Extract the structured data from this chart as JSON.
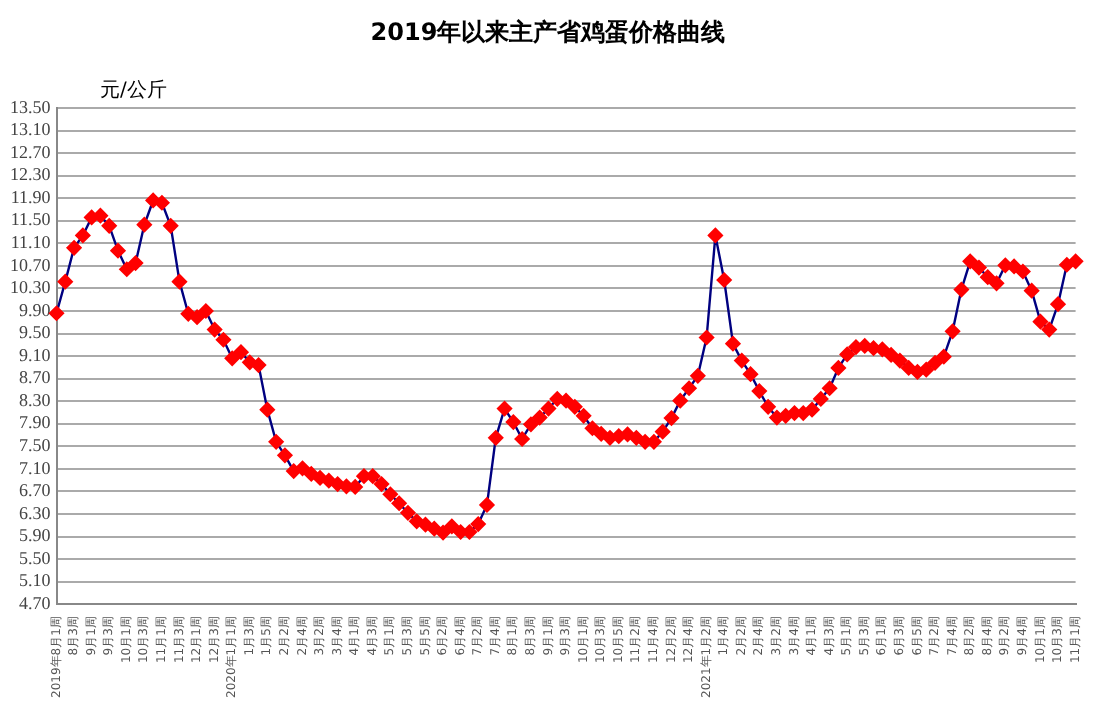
{
  "chart_data": {
    "type": "line",
    "title": "2019年以来主产省鸡蛋价格曲线",
    "ylabel": "元/公斤",
    "categories": [
      "2019年8月1周",
      null,
      "8月3周",
      null,
      "9月1周",
      null,
      "9月3周",
      null,
      "10月1周",
      null,
      "10月3周",
      null,
      "11月1周",
      null,
      "11月3周",
      null,
      "12月1周",
      null,
      "12月3周",
      null,
      "2020年1月1周",
      null,
      "1月3周",
      null,
      "1月5周",
      null,
      "2月2周",
      null,
      "2月4周",
      null,
      "3月2周",
      null,
      "3月4周",
      null,
      "4月1周",
      null,
      "4月3周",
      null,
      "5月1周",
      null,
      "5月3周",
      null,
      "5月5周",
      null,
      "6月2周",
      null,
      "6月4周",
      null,
      "7月2周",
      null,
      "7月4周",
      null,
      "8月1周",
      null,
      "8月3周",
      null,
      "9月1周",
      null,
      "9月3周",
      null,
      "10月1周",
      null,
      "10月3周",
      null,
      "10月5周",
      null,
      "11月2周",
      null,
      "11月4周",
      null,
      "12月2周",
      null,
      "12月4周",
      null,
      "2021年1月2周",
      null,
      "1月4周",
      null,
      "2月2周",
      null,
      "2月4周",
      null,
      "3月2周",
      null,
      "3月4周",
      null,
      "4月1周",
      null,
      "4月3周",
      null,
      "5月1周",
      null,
      "5月3周",
      null,
      "6月1周",
      null,
      "6月3周",
      null,
      "6月5周",
      null,
      "7月2周",
      null,
      "7月4周",
      null,
      "8月2周",
      null,
      "8月4周",
      null,
      "9月2周",
      null,
      "9月4周",
      null,
      "10月1周",
      null,
      "10月3周",
      null,
      "11月1周"
    ],
    "series": [
      {
        "color": "#ff0000",
        "values": [
          9.86,
          10.42,
          11.02,
          11.24,
          11.56,
          11.59,
          11.41,
          10.97,
          10.64,
          10.75,
          11.43,
          11.86,
          11.82,
          11.41,
          10.42,
          9.85,
          9.79,
          9.9,
          9.57,
          9.39,
          9.06,
          9.17,
          8.99,
          8.94,
          8.15,
          7.58,
          7.34,
          7.06,
          7.11,
          7.01,
          6.94,
          6.89,
          6.83,
          6.79,
          6.78,
          6.97,
          6.97,
          6.83,
          6.65,
          6.49,
          6.32,
          6.17,
          6.11,
          6.04,
          5.97,
          6.08,
          5.98,
          5.98,
          6.12,
          6.46,
          7.65,
          8.17,
          7.93,
          7.63,
          7.89,
          8.01,
          8.17,
          8.34,
          8.31,
          8.2,
          8.04,
          7.82,
          7.72,
          7.65,
          7.68,
          7.71,
          7.65,
          7.58,
          7.58,
          7.76,
          8.0,
          8.31,
          8.53,
          8.75,
          9.43,
          11.24,
          10.45,
          9.32,
          9.02,
          8.78,
          8.48,
          8.2,
          8.01,
          8.04,
          8.09,
          8.09,
          8.15,
          8.34,
          8.53,
          8.89,
          9.13,
          9.26,
          9.28,
          9.24,
          9.22,
          9.12,
          9.02,
          8.89,
          8.82,
          8.86,
          8.98,
          9.09,
          9.54,
          10.28,
          10.78,
          10.67,
          10.5,
          10.39,
          10.71,
          10.69,
          10.6,
          10.26,
          9.71,
          9.57,
          10.02,
          10.72,
          10.78
        ]
      }
    ],
    "ylim": [
      4.7,
      13.5
    ],
    "yticks": [
      {
        "value": 4.7,
        "label": "4.70"
      },
      {
        "value": 5.1,
        "label": "5.10"
      },
      {
        "value": 5.5,
        "label": "5.50"
      },
      {
        "value": 5.9,
        "label": "5.90"
      },
      {
        "value": 6.3,
        "label": "6.30"
      },
      {
        "value": 6.7,
        "label": "6.70"
      },
      {
        "value": 7.1,
        "label": "7.10"
      },
      {
        "value": 7.5,
        "label": "7.50"
      },
      {
        "value": 7.9,
        "label": "7.90"
      },
      {
        "value": 8.3,
        "label": "8.30"
      },
      {
        "value": 8.7,
        "label": "8.70"
      },
      {
        "value": 9.1,
        "label": "9.10"
      },
      {
        "value": 9.5,
        "label": "9.50"
      },
      {
        "value": 9.9,
        "label": "9.90"
      },
      {
        "value": 10.3,
        "label": "10.30"
      },
      {
        "value": 10.7,
        "label": "10.70"
      },
      {
        "value": 11.1,
        "label": "11.10"
      },
      {
        "value": 11.5,
        "label": "11.50"
      },
      {
        "value": 11.9,
        "label": "11.90"
      },
      {
        "value": 12.3,
        "label": "12.30"
      },
      {
        "value": 12.7,
        "label": "12.70"
      },
      {
        "value": 13.1,
        "label": "13.10"
      },
      {
        "value": 13.5,
        "label": "13.50"
      }
    ],
    "grid": "y",
    "legend": false,
    "marker": "diamond",
    "line_style": "solid"
  }
}
